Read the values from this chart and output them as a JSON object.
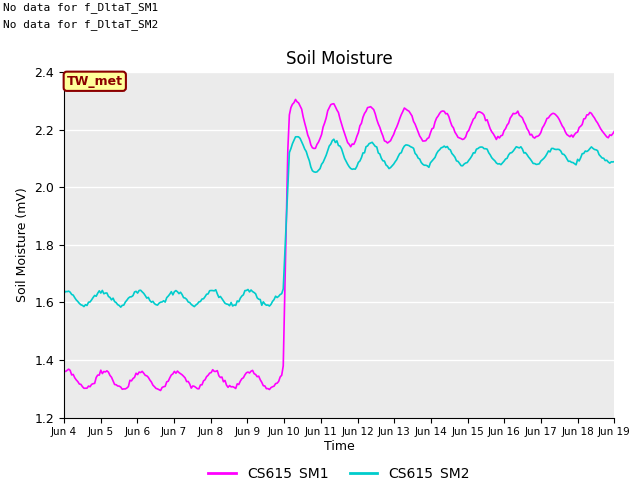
{
  "title": "Soil Moisture",
  "xlabel": "Time",
  "ylabel": "Soil Moisture (mV)",
  "ylim": [
    1.2,
    2.4
  ],
  "text_no_data1": "No data for f_DltaT_SM1",
  "text_no_data2": "No data for f_DltaT_SM2",
  "tw_met_label": "TW_met",
  "legend_labels": [
    "CS615_SM1",
    "CS615_SM2"
  ],
  "line_colors": [
    "#FF00FF",
    "#00CCCC"
  ],
  "background_color": "#EBEBEB",
  "xtick_labels": [
    "Jun 4",
    "Jun 5",
    "Jun 6",
    "Jun 7",
    "Jun 8",
    "Jun 9",
    "Jun 10",
    "Jun 11",
    "Jun 12",
    "Jun 13",
    "Jun 14",
    "Jun 15",
    "Jun 16",
    "Jun 17",
    "Jun 18",
    "Jun 19"
  ],
  "xtick_positions": [
    0,
    24,
    48,
    72,
    96,
    120,
    144,
    168,
    192,
    216,
    240,
    264,
    288,
    312,
    336,
    360
  ],
  "ytick_values": [
    1.2,
    1.4,
    1.6,
    1.8,
    2.0,
    2.2,
    2.4
  ]
}
